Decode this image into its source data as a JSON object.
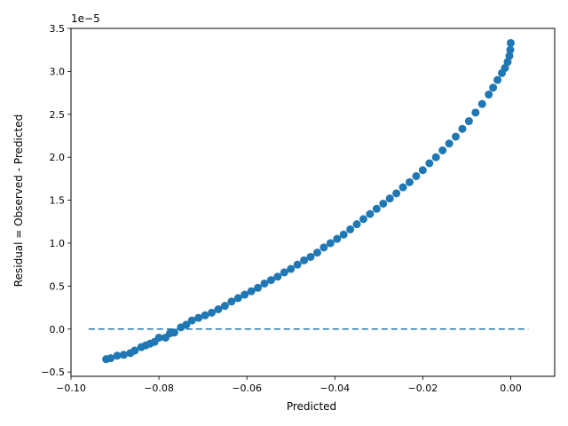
{
  "chart_data": {
    "type": "scatter",
    "title": "",
    "xlabel": "Predicted",
    "ylabel": "Residual = Observed - Predicted",
    "y_scale_label": "1e−5",
    "xlim": [
      -0.1,
      0.01
    ],
    "ylim": [
      -0.55,
      3.5
    ],
    "y_unit_multiplier": "1e-5",
    "x_ticks": [
      -0.1,
      -0.08,
      -0.06,
      -0.04,
      -0.02,
      0.0
    ],
    "x_tick_labels": [
      "−0.10",
      "−0.08",
      "−0.06",
      "−0.04",
      "−0.02",
      "0.00"
    ],
    "y_ticks": [
      -0.5,
      0.0,
      0.5,
      1.0,
      1.5,
      2.0,
      2.5,
      3.0,
      3.5
    ],
    "y_tick_labels": [
      "−0.5",
      "0.0",
      "0.5",
      "1.0",
      "1.5",
      "2.0",
      "2.5",
      "3.0",
      "3.5"
    ],
    "grid": false,
    "colors": {
      "points": "#1f77b4",
      "reference_line": "#1f77b4"
    },
    "reference_line": {
      "y": 0,
      "x_start": -0.096,
      "x_end": 0.004,
      "style": "dashed"
    },
    "series": [
      {
        "x": [
          -0.092,
          -0.091,
          -0.0895,
          -0.088,
          -0.0865,
          -0.0855,
          -0.084,
          -0.083,
          -0.082,
          -0.081,
          -0.08,
          -0.0785,
          -0.0775,
          -0.0765,
          -0.075,
          -0.0738,
          -0.0725,
          -0.071,
          -0.0695,
          -0.068,
          -0.0665,
          -0.065,
          -0.0635,
          -0.062,
          -0.0605,
          -0.059,
          -0.0575,
          -0.056,
          -0.0545,
          -0.053,
          -0.0515,
          -0.05,
          -0.0485,
          -0.047,
          -0.0455,
          -0.044,
          -0.0425,
          -0.041,
          -0.0395,
          -0.038,
          -0.0365,
          -0.035,
          -0.0335,
          -0.032,
          -0.0305,
          -0.029,
          -0.0275,
          -0.026,
          -0.0245,
          -0.023,
          -0.0215,
          -0.02,
          -0.0185,
          -0.017,
          -0.0155,
          -0.014,
          -0.0125,
          -0.011,
          -0.0095,
          -0.008,
          -0.0065,
          -0.005,
          -0.004,
          -0.003,
          -0.002,
          -0.0013,
          -0.0007,
          -0.0003,
          -0.0001,
          0.0
        ],
        "y": [
          -0.35,
          -0.34,
          -0.31,
          -0.3,
          -0.28,
          -0.25,
          -0.21,
          -0.19,
          -0.17,
          -0.15,
          -0.1,
          -0.1,
          -0.05,
          -0.04,
          0.02,
          0.05,
          0.1,
          0.13,
          0.16,
          0.19,
          0.23,
          0.27,
          0.32,
          0.36,
          0.4,
          0.44,
          0.48,
          0.53,
          0.57,
          0.61,
          0.66,
          0.7,
          0.75,
          0.8,
          0.84,
          0.89,
          0.95,
          1.0,
          1.05,
          1.1,
          1.16,
          1.22,
          1.28,
          1.34,
          1.4,
          1.46,
          1.52,
          1.58,
          1.65,
          1.71,
          1.78,
          1.85,
          1.93,
          2.0,
          2.08,
          2.16,
          2.24,
          2.33,
          2.42,
          2.52,
          2.62,
          2.73,
          2.81,
          2.9,
          2.98,
          3.04,
          3.11,
          3.18,
          3.25,
          3.33
        ]
      }
    ]
  }
}
